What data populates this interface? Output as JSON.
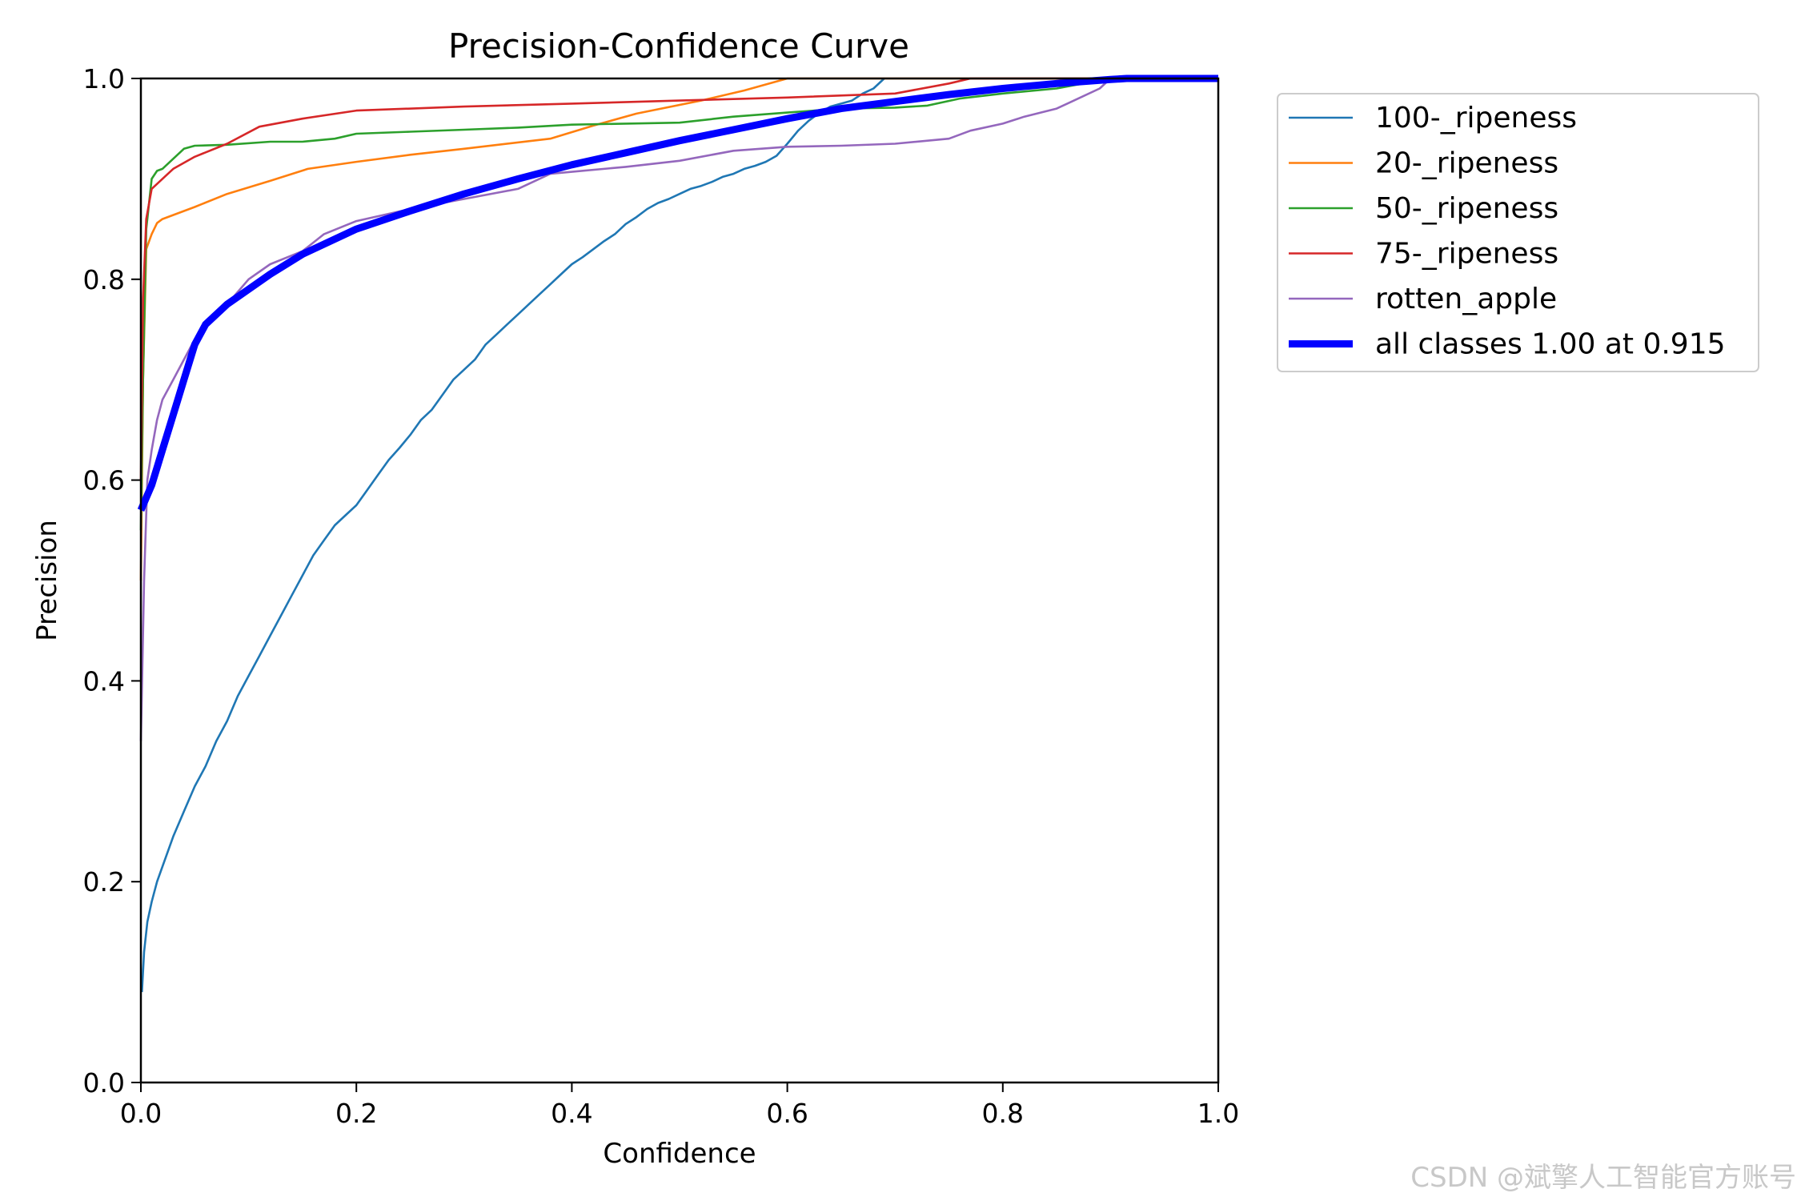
{
  "chart_data": {
    "type": "line",
    "title": "Precision-Confidence Curve",
    "xlabel": "Confidence",
    "ylabel": "Precision",
    "xlim": [
      0,
      1
    ],
    "ylim": [
      0,
      1
    ],
    "xticks": [
      "0.0",
      "0.2",
      "0.4",
      "0.6",
      "0.8",
      "1.0"
    ],
    "yticks": [
      "0.0",
      "0.2",
      "0.4",
      "0.6",
      "0.8",
      "1.0"
    ],
    "grid": false,
    "legend_position": "outside-top-right",
    "series": [
      {
        "name": "100-_ripeness",
        "color": "#1f77b4",
        "width": "thin",
        "points": [
          [
            0.001,
            0.09
          ],
          [
            0.003,
            0.13
          ],
          [
            0.006,
            0.16
          ],
          [
            0.01,
            0.18
          ],
          [
            0.015,
            0.2
          ],
          [
            0.02,
            0.215
          ],
          [
            0.03,
            0.245
          ],
          [
            0.04,
            0.27
          ],
          [
            0.05,
            0.295
          ],
          [
            0.06,
            0.315
          ],
          [
            0.07,
            0.34
          ],
          [
            0.08,
            0.36
          ],
          [
            0.09,
            0.385
          ],
          [
            0.1,
            0.405
          ],
          [
            0.11,
            0.425
          ],
          [
            0.12,
            0.445
          ],
          [
            0.13,
            0.465
          ],
          [
            0.14,
            0.485
          ],
          [
            0.15,
            0.505
          ],
          [
            0.16,
            0.525
          ],
          [
            0.17,
            0.54
          ],
          [
            0.18,
            0.555
          ],
          [
            0.19,
            0.565
          ],
          [
            0.2,
            0.575
          ],
          [
            0.21,
            0.59
          ],
          [
            0.22,
            0.605
          ],
          [
            0.23,
            0.62
          ],
          [
            0.24,
            0.632
          ],
          [
            0.25,
            0.645
          ],
          [
            0.26,
            0.66
          ],
          [
            0.27,
            0.67
          ],
          [
            0.28,
            0.685
          ],
          [
            0.29,
            0.7
          ],
          [
            0.3,
            0.71
          ],
          [
            0.31,
            0.72
          ],
          [
            0.32,
            0.735
          ],
          [
            0.33,
            0.745
          ],
          [
            0.34,
            0.755
          ],
          [
            0.35,
            0.765
          ],
          [
            0.36,
            0.775
          ],
          [
            0.37,
            0.785
          ],
          [
            0.38,
            0.795
          ],
          [
            0.39,
            0.805
          ],
          [
            0.4,
            0.815
          ],
          [
            0.41,
            0.822
          ],
          [
            0.42,
            0.83
          ],
          [
            0.43,
            0.838
          ],
          [
            0.44,
            0.845
          ],
          [
            0.45,
            0.855
          ],
          [
            0.46,
            0.862
          ],
          [
            0.47,
            0.87
          ],
          [
            0.48,
            0.876
          ],
          [
            0.49,
            0.88
          ],
          [
            0.5,
            0.885
          ],
          [
            0.51,
            0.89
          ],
          [
            0.52,
            0.893
          ],
          [
            0.53,
            0.897
          ],
          [
            0.54,
            0.902
          ],
          [
            0.55,
            0.905
          ],
          [
            0.56,
            0.91
          ],
          [
            0.57,
            0.913
          ],
          [
            0.58,
            0.917
          ],
          [
            0.59,
            0.923
          ],
          [
            0.6,
            0.935
          ],
          [
            0.61,
            0.948
          ],
          [
            0.62,
            0.958
          ],
          [
            0.63,
            0.966
          ],
          [
            0.64,
            0.972
          ],
          [
            0.65,
            0.975
          ],
          [
            0.66,
            0.978
          ],
          [
            0.67,
            0.985
          ],
          [
            0.68,
            0.99
          ],
          [
            0.69,
            1.0
          ]
        ]
      },
      {
        "name": "20-_ripeness",
        "color": "#ff7f0e",
        "width": "thin",
        "points": [
          [
            0.0,
            0.5
          ],
          [
            0.002,
            0.7
          ],
          [
            0.005,
            0.83
          ],
          [
            0.01,
            0.845
          ],
          [
            0.015,
            0.856
          ],
          [
            0.02,
            0.86
          ],
          [
            0.05,
            0.872
          ],
          [
            0.08,
            0.885
          ],
          [
            0.12,
            0.898
          ],
          [
            0.155,
            0.91
          ],
          [
            0.2,
            0.917
          ],
          [
            0.25,
            0.924
          ],
          [
            0.3,
            0.93
          ],
          [
            0.38,
            0.94
          ],
          [
            0.42,
            0.953
          ],
          [
            0.46,
            0.965
          ],
          [
            0.52,
            0.978
          ],
          [
            0.56,
            0.988
          ],
          [
            0.6,
            1.0
          ],
          [
            1.0,
            1.0
          ]
        ]
      },
      {
        "name": "50-_ripeness",
        "color": "#2ca02c",
        "width": "thin",
        "points": [
          [
            0.0,
            0.55
          ],
          [
            0.002,
            0.7
          ],
          [
            0.005,
            0.85
          ],
          [
            0.01,
            0.9
          ],
          [
            0.015,
            0.908
          ],
          [
            0.02,
            0.91
          ],
          [
            0.03,
            0.92
          ],
          [
            0.04,
            0.93
          ],
          [
            0.05,
            0.933
          ],
          [
            0.08,
            0.934
          ],
          [
            0.12,
            0.937
          ],
          [
            0.15,
            0.937
          ],
          [
            0.18,
            0.94
          ],
          [
            0.2,
            0.945
          ],
          [
            0.25,
            0.947
          ],
          [
            0.3,
            0.949
          ],
          [
            0.35,
            0.951
          ],
          [
            0.4,
            0.954
          ],
          [
            0.45,
            0.955
          ],
          [
            0.5,
            0.956
          ],
          [
            0.55,
            0.962
          ],
          [
            0.6,
            0.966
          ],
          [
            0.65,
            0.97
          ],
          [
            0.7,
            0.971
          ],
          [
            0.73,
            0.973
          ],
          [
            0.76,
            0.98
          ],
          [
            0.8,
            0.985
          ],
          [
            0.85,
            0.99
          ],
          [
            0.9,
            1.0
          ],
          [
            1.0,
            1.0
          ]
        ]
      },
      {
        "name": "75-_ripeness",
        "color": "#d62728",
        "width": "thin",
        "points": [
          [
            0.0,
            0.6
          ],
          [
            0.002,
            0.78
          ],
          [
            0.005,
            0.86
          ],
          [
            0.01,
            0.89
          ],
          [
            0.02,
            0.9
          ],
          [
            0.03,
            0.91
          ],
          [
            0.05,
            0.922
          ],
          [
            0.08,
            0.935
          ],
          [
            0.11,
            0.952
          ],
          [
            0.15,
            0.96
          ],
          [
            0.2,
            0.968
          ],
          [
            0.3,
            0.972
          ],
          [
            0.4,
            0.975
          ],
          [
            0.5,
            0.978
          ],
          [
            0.6,
            0.981
          ],
          [
            0.7,
            0.985
          ],
          [
            0.75,
            0.995
          ],
          [
            0.77,
            1.0
          ],
          [
            1.0,
            1.0
          ]
        ]
      },
      {
        "name": "rotten_apple",
        "color": "#9467bd",
        "width": "thin",
        "points": [
          [
            0.0,
            0.34
          ],
          [
            0.003,
            0.5
          ],
          [
            0.006,
            0.6
          ],
          [
            0.01,
            0.63
          ],
          [
            0.015,
            0.66
          ],
          [
            0.02,
            0.68
          ],
          [
            0.03,
            0.7
          ],
          [
            0.04,
            0.72
          ],
          [
            0.05,
            0.74
          ],
          [
            0.06,
            0.755
          ],
          [
            0.08,
            0.775
          ],
          [
            0.1,
            0.8
          ],
          [
            0.12,
            0.815
          ],
          [
            0.15,
            0.828
          ],
          [
            0.17,
            0.845
          ],
          [
            0.2,
            0.858
          ],
          [
            0.25,
            0.87
          ],
          [
            0.3,
            0.88
          ],
          [
            0.35,
            0.89
          ],
          [
            0.38,
            0.905
          ],
          [
            0.4,
            0.907
          ],
          [
            0.45,
            0.912
          ],
          [
            0.5,
            0.918
          ],
          [
            0.55,
            0.928
          ],
          [
            0.6,
            0.932
          ],
          [
            0.65,
            0.933
          ],
          [
            0.7,
            0.935
          ],
          [
            0.75,
            0.94
          ],
          [
            0.77,
            0.948
          ],
          [
            0.8,
            0.955
          ],
          [
            0.82,
            0.962
          ],
          [
            0.85,
            0.97
          ],
          [
            0.87,
            0.98
          ],
          [
            0.89,
            0.99
          ],
          [
            0.9,
            1.0
          ],
          [
            1.0,
            1.0
          ]
        ]
      },
      {
        "name": "all classes 1.00 at 0.915",
        "color": "#0000ff",
        "width": "thick",
        "points": [
          [
            0.0,
            0.57
          ],
          [
            0.01,
            0.595
          ],
          [
            0.02,
            0.63
          ],
          [
            0.03,
            0.665
          ],
          [
            0.04,
            0.7
          ],
          [
            0.05,
            0.735
          ],
          [
            0.06,
            0.755
          ],
          [
            0.08,
            0.775
          ],
          [
            0.1,
            0.79
          ],
          [
            0.12,
            0.805
          ],
          [
            0.15,
            0.825
          ],
          [
            0.2,
            0.85
          ],
          [
            0.25,
            0.868
          ],
          [
            0.3,
            0.885
          ],
          [
            0.35,
            0.9
          ],
          [
            0.4,
            0.914
          ],
          [
            0.45,
            0.926
          ],
          [
            0.5,
            0.938
          ],
          [
            0.55,
            0.949
          ],
          [
            0.6,
            0.96
          ],
          [
            0.65,
            0.97
          ],
          [
            0.7,
            0.977
          ],
          [
            0.75,
            0.984
          ],
          [
            0.8,
            0.99
          ],
          [
            0.85,
            0.995
          ],
          [
            0.9,
            0.999
          ],
          [
            0.915,
            1.0
          ],
          [
            1.0,
            1.0
          ]
        ]
      }
    ]
  },
  "watermark": "CSDN @斌擎人工智能官方账号"
}
